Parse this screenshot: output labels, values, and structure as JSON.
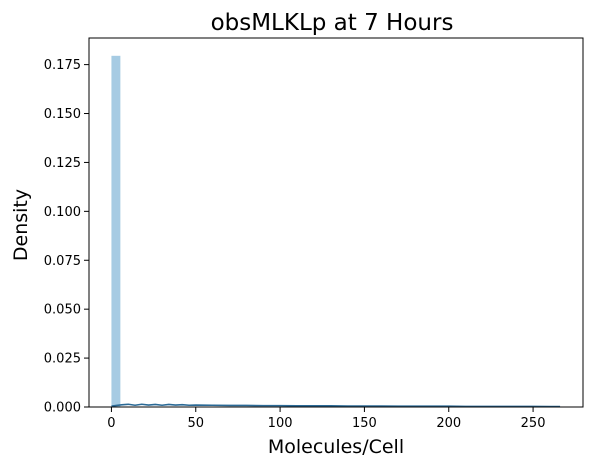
{
  "chart_data": {
    "type": "histogram",
    "title": "obsMLKLp at 7 Hours",
    "xlabel": "Molecules/Cell",
    "ylabel": "Density",
    "xlim": [
      -13.3,
      279.6
    ],
    "ylim": [
      0,
      0.1886
    ],
    "x_ticks": [
      0,
      50,
      100,
      150,
      200,
      250
    ],
    "x_tick_labels": [
      "0",
      "50",
      "100",
      "150",
      "200",
      "250"
    ],
    "y_ticks": [
      0.0,
      0.025,
      0.05,
      0.075,
      0.1,
      0.125,
      0.15,
      0.175
    ],
    "y_tick_labels": [
      "0.000",
      "0.025",
      "0.050",
      "0.075",
      "0.100",
      "0.125",
      "0.150",
      "0.175"
    ],
    "bar_color": "#a6cbe3",
    "kde_color": "#2b6a96",
    "bins": [
      {
        "x0": 0.0,
        "x1": 5.3,
        "density": 0.1795
      }
    ],
    "kde_x": [
      0,
      3,
      6,
      10,
      14,
      18,
      22,
      26,
      30,
      34,
      38,
      42,
      46,
      50,
      60,
      70,
      80,
      90,
      100,
      110,
      120,
      130,
      140,
      150,
      160,
      170,
      180,
      190,
      200,
      210,
      220,
      230,
      240,
      250,
      260,
      266
    ],
    "kde_y": [
      0.0004,
      0.0008,
      0.0011,
      0.0014,
      0.0009,
      0.0014,
      0.001,
      0.0013,
      0.0009,
      0.0013,
      0.001,
      0.0012,
      0.0009,
      0.001,
      0.0009,
      0.0008,
      0.0008,
      0.0007,
      0.0007,
      0.0006,
      0.0006,
      0.0006,
      0.0005,
      0.0005,
      0.0005,
      0.0004,
      0.0004,
      0.0004,
      0.0004,
      0.0003,
      0.0003,
      0.0003,
      0.0003,
      0.0003,
      0.0002,
      0.0002
    ]
  }
}
